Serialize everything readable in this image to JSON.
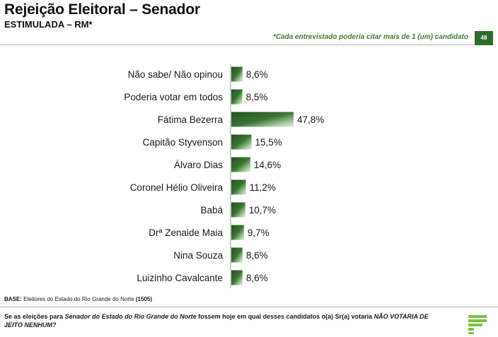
{
  "header": {
    "title": "Rejeição Eleitoral – Senador",
    "subtitle": "ESTIMULADA – RM*",
    "note": "*Cada entrevistado poderia citar mais de 1 (um) candidato",
    "page_number": "48"
  },
  "footer": {
    "base_label": "BASE:",
    "base_text": " Eleitores do Estado do Rio Grande do Norte ",
    "base_count": "(1505)",
    "question_part1": "Se as eleições para ",
    "question_part2": "Senador do Estado do Rio Grande do Norte",
    "question_part3": " fossem hoje em qual desses candidatos o(a) Sr(a) votaria ",
    "question_part4": "NÃO VOTARIA DE JEITO NENHUM?"
  },
  "colors": {
    "bar": "#2f5f2a",
    "accent": "#3f7d2e",
    "logo": "#7dc242"
  },
  "chart_data": {
    "type": "bar",
    "orientation": "horizontal",
    "categories": [
      "Não sabe/ Não opinou",
      "Poderia votar em todos",
      "Fátima Bezerra",
      "Capitão Styvenson",
      "Álvaro Dias",
      "Coronel Hélio Oliveira",
      "Babá",
      "Drª Zenaide Maia",
      "Nina Souza",
      "Luizinho Cavalcante"
    ],
    "values": [
      8.6,
      8.5,
      47.8,
      15.5,
      14.6,
      11.2,
      10.7,
      9.7,
      8.6,
      8.6
    ],
    "value_labels": [
      "8,6%",
      "8,5%",
      "47,8%",
      "15,5%",
      "14,6%",
      "11,2%",
      "10,7%",
      "9,7%",
      "8,6%",
      "8,6%"
    ],
    "unit": "%",
    "grid": false,
    "legend": "none"
  }
}
